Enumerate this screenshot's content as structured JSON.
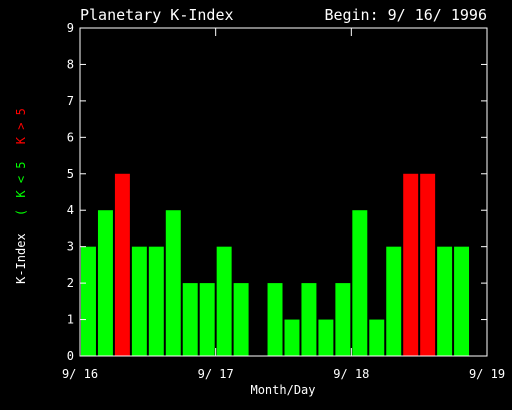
{
  "colors": {
    "background": "#000000",
    "foreground": "#ffffff",
    "quiet_bar": "#00ff00",
    "storm_bar": "#ff0000"
  },
  "chart_data": {
    "type": "bar",
    "title": "Planetary K-Index",
    "begin_label": "Begin: 9/ 16/ 1996",
    "xlabel": "Month/Day",
    "ylabel_parts": {
      "main": "K-Index",
      "open": "(",
      "quiet": "K < 5",
      "storm": "K > 5"
    },
    "ylim": [
      0,
      9
    ],
    "yticks": [
      "0",
      "1",
      "2",
      "3",
      "4",
      "5",
      "6",
      "7",
      "8",
      "9"
    ],
    "xticks": [
      {
        "label": "9/ 16",
        "day_offset": 0
      },
      {
        "label": "9/ 17",
        "day_offset": 1
      },
      {
        "label": "9/ 18",
        "day_offset": 2
      },
      {
        "label": "9/ 19",
        "day_offset": 3
      }
    ],
    "bar_interval_hours": 3,
    "storm_threshold": 5,
    "values": [
      3,
      4,
      5,
      3,
      3,
      4,
      2,
      2,
      3,
      2,
      null,
      2,
      1,
      2,
      1,
      2,
      4,
      1,
      3,
      5,
      5,
      3,
      3,
      null
    ],
    "grid": false,
    "legend": "none"
  }
}
